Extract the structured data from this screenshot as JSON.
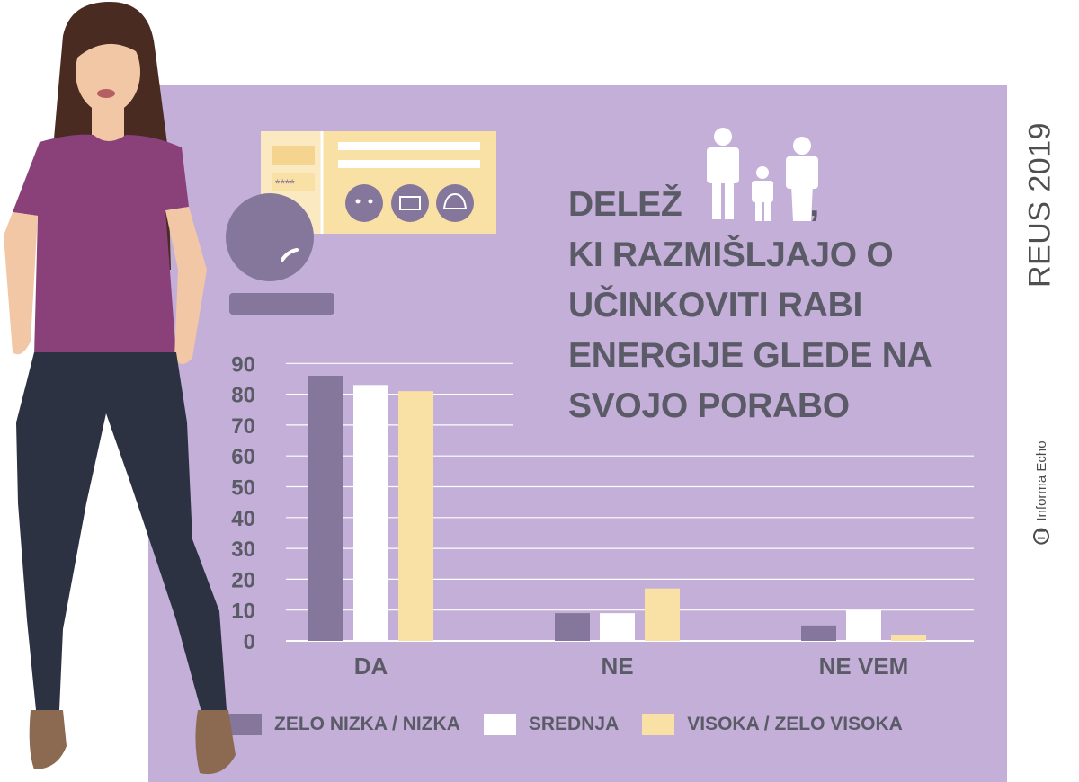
{
  "badge": {
    "text": "REUS 2019"
  },
  "source": {
    "text": "Informa Echo"
  },
  "title": {
    "line1_pre": "DELEŽ",
    "line1_post": ",",
    "line2": "KI RAZMIŠLJAJO O",
    "line3": "UČINKOVITI RABI",
    "line4": "ENERGIJE GLEDE NA",
    "line5": "SVOJO PORABO"
  },
  "illustration": {
    "pin_mask": "****"
  },
  "colors": {
    "panel": "#c3afd7",
    "series_low": "#85769b",
    "series_mid": "#ffffff",
    "series_high": "#f9e1a6",
    "text": "#5b5b68"
  },
  "icons": [
    "family-icon",
    "smart-meter-icon",
    "woman-figure"
  ],
  "chart_data": {
    "type": "bar",
    "categories": [
      "DA",
      "NE",
      "NE VEM"
    ],
    "series": [
      {
        "name": "ZELO NIZKA / NIZKA",
        "values": [
          86,
          9,
          5
        ],
        "color": "#85769b"
      },
      {
        "name": "SREDNJA",
        "values": [
          83,
          9,
          10
        ],
        "color": "#ffffff"
      },
      {
        "name": "VISOKA / ZELO VISOKA",
        "values": [
          81,
          17,
          2
        ],
        "color": "#f9e1a6"
      }
    ],
    "yticks": [
      0,
      10,
      20,
      30,
      40,
      50,
      60,
      70,
      80,
      90
    ],
    "ylim": [
      0,
      90
    ],
    "grid": true,
    "legend": "bottom"
  }
}
